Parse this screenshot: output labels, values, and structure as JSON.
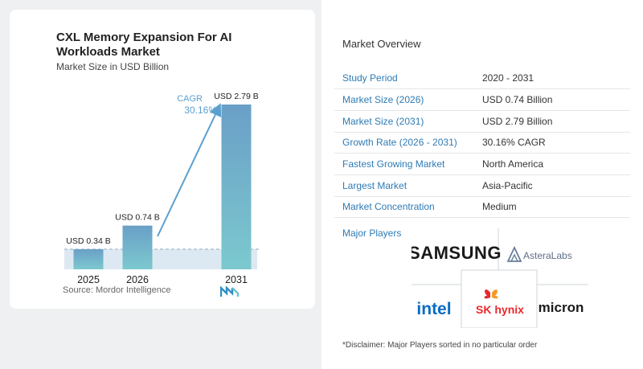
{
  "chart": {
    "title": "CXL Memory Expansion For AI Workloads Market",
    "subtitle": "Market Size in USD Billion",
    "source": "Source:  Mordor Intelligence"
  },
  "chart_data": {
    "type": "bar",
    "categories": [
      "2025",
      "2026",
      "2031"
    ],
    "values": [
      0.34,
      0.74,
      2.79
    ],
    "data_labels": [
      "USD 0.34 B",
      "USD 0.74 B",
      "USD 2.79 B"
    ],
    "title": "CXL Memory Expansion For AI Workloads Market",
    "subtitle": "Market Size in USD Billion",
    "annotation": {
      "label": "CAGR",
      "value": "30.16%"
    },
    "colors": {
      "bar_top": "#6a9fc7",
      "bar_bottom": "#7cc9cf",
      "arrow": "#5b9fd0",
      "band": "#dde9f2"
    }
  },
  "overview": {
    "title": "Market Overview",
    "rows": [
      {
        "key": "Study Period",
        "value": "2020 - 2031"
      },
      {
        "key": "Market Size (2026)",
        "value": "USD 0.74 Billion"
      },
      {
        "key": "Market Size (2031)",
        "value": "USD 2.79 Billion"
      },
      {
        "key": "Growth Rate (2026 - 2031)",
        "value": "30.16% CAGR"
      },
      {
        "key": "Fastest Growing Market",
        "value": "North America"
      },
      {
        "key": "Largest Market",
        "value": "Asia-Pacific"
      },
      {
        "key": "Market Concentration",
        "value": "Medium"
      }
    ],
    "players_label": "Major Players",
    "players": [
      "SAMSUNG",
      "AsteraLabs",
      "intel",
      "SK hynix",
      "micron"
    ],
    "disclaimer": "*Disclaimer: Major Players sorted in no particular order"
  }
}
